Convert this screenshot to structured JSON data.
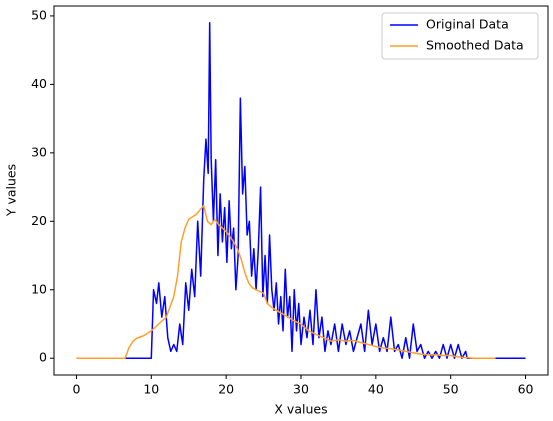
{
  "chart_data": {
    "type": "line",
    "xlabel": "X values",
    "ylabel": "Y values",
    "xlim": [
      -3,
      63
    ],
    "ylim": [
      -2.45,
      51.45
    ],
    "xticks": [
      0,
      10,
      20,
      30,
      40,
      50,
      60
    ],
    "yticks": [
      0,
      10,
      20,
      30,
      40,
      50
    ],
    "grid": false,
    "legend": "upper right",
    "series": [
      {
        "name": "Original Data",
        "color": "#0000ff",
        "x": [
          0,
          10,
          10.3,
          10.7,
          11,
          11.4,
          11.8,
          12.2,
          12.6,
          13,
          13.4,
          13.8,
          14.2,
          14.6,
          15,
          15.4,
          15.8,
          16.2,
          16.6,
          17,
          17.3,
          17.6,
          17.8,
          18,
          18.3,
          18.6,
          18.9,
          19.2,
          19.5,
          19.8,
          20.1,
          20.4,
          20.7,
          21,
          21.3,
          21.6,
          21.9,
          22.2,
          22.5,
          22.8,
          23.1,
          23.4,
          23.7,
          24,
          24.3,
          24.6,
          24.9,
          25.2,
          25.5,
          25.8,
          26.1,
          26.4,
          26.7,
          27,
          27.3,
          27.6,
          27.9,
          28.2,
          28.5,
          28.8,
          29.1,
          29.4,
          29.7,
          30,
          30.4,
          30.8,
          31.2,
          31.6,
          32,
          32.4,
          32.8,
          33.2,
          33.6,
          34,
          34.5,
          35,
          35.5,
          36,
          36.5,
          37,
          37.5,
          38,
          38.5,
          39,
          39.5,
          40,
          40.5,
          41,
          41.5,
          42,
          42.5,
          43,
          43.5,
          44,
          44.5,
          45,
          45.5,
          46,
          46.5,
          47,
          47.5,
          48,
          48.5,
          49,
          49.5,
          50,
          50.5,
          51,
          51.5,
          52,
          52.2,
          60
        ],
        "values": [
          0,
          0,
          10,
          8,
          11,
          6,
          9,
          3,
          1,
          2,
          1,
          5,
          2,
          11,
          7,
          13,
          9,
          20,
          12,
          26,
          32,
          27,
          49,
          29,
          20,
          29,
          15,
          24,
          17,
          22,
          14,
          23,
          16,
          19,
          10,
          15,
          38,
          24,
          28,
          18,
          20,
          12,
          16,
          10,
          16,
          25,
          9,
          15,
          8,
          18,
          10,
          7,
          11,
          5,
          9,
          4,
          13,
          6,
          9,
          1,
          10,
          4,
          8,
          2,
          6,
          3,
          7,
          2,
          10,
          3,
          6,
          1,
          4,
          2,
          5,
          1,
          5,
          2,
          4,
          1,
          3,
          5,
          1,
          7,
          2,
          5,
          1,
          3,
          1,
          6,
          1,
          2,
          0,
          3,
          0,
          5,
          1,
          2,
          0,
          1,
          0,
          1,
          0,
          2,
          0,
          2,
          0,
          2,
          0,
          1,
          0,
          0
        ]
      },
      {
        "name": "Smoothed Data",
        "color": "#ff9f2a",
        "x": [
          0,
          6.5,
          7,
          7.5,
          8,
          9,
          10,
          11,
          12,
          13,
          13.5,
          14,
          14.5,
          15,
          16,
          17,
          17.5,
          18,
          18.5,
          19,
          20,
          21,
          21.5,
          22,
          22.5,
          23,
          23.5,
          24,
          25,
          25.5,
          26,
          27,
          28,
          29,
          30,
          31,
          32,
          33,
          34,
          35,
          36,
          37,
          38,
          39,
          40,
          41,
          42,
          43,
          44,
          45,
          46,
          47,
          48,
          49,
          50,
          51,
          52,
          53,
          56
        ],
        "values": [
          0,
          0,
          1.5,
          2.4,
          2.9,
          3.3,
          4,
          5,
          6,
          9,
          12,
          17,
          19,
          20.3,
          21,
          22.3,
          20,
          19.5,
          20.3,
          19.5,
          18.5,
          17,
          16,
          14.5,
          12.5,
          11,
          10.3,
          10,
          9.5,
          8,
          7.5,
          6.8,
          6.2,
          5.5,
          5,
          4,
          3.5,
          3,
          2.5,
          2.7,
          2.5,
          2.6,
          2.3,
          2,
          1.7,
          1.5,
          1.4,
          1.2,
          1,
          0.8,
          0.6,
          0.5,
          0.5,
          0.4,
          0.4,
          0.2,
          0.1,
          0,
          0
        ]
      }
    ]
  }
}
